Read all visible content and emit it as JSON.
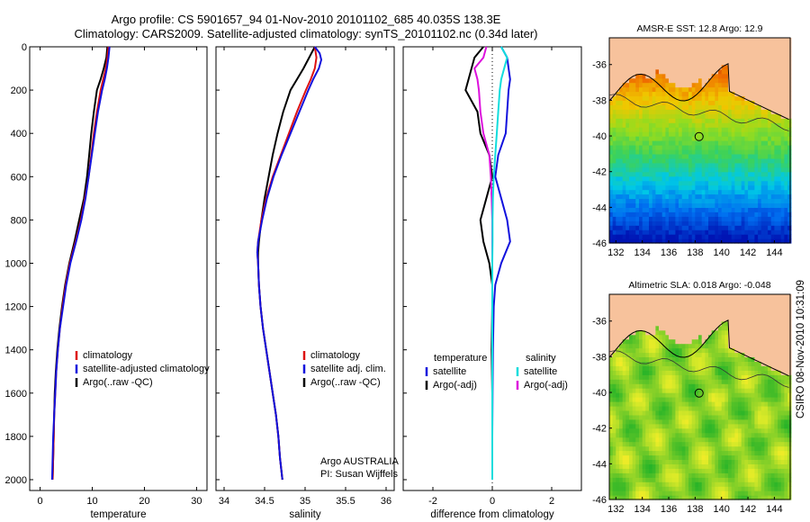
{
  "header": {
    "line1": "Argo profile: CS 5901657_94 01-Nov-2010 20101102_685 40.035S 138.3E",
    "line2": "Climatology: CARS2009. Satellite-adjusted climatology: synTS_20101102.nc (0.34d later)"
  },
  "side_label": "CSIRO 08-Nov-2010 10:31:09",
  "colors": {
    "clim": "#dd1111",
    "sat": "#1111dd",
    "argo": "#000000",
    "sat_sal": "#11dddd",
    "argo_sal": "#dd11dd"
  },
  "chart_data": [
    {
      "type": "line",
      "xlabel": "temperature",
      "xlim": [
        -2,
        32
      ],
      "ylim": [
        2050,
        0
      ],
      "xticks": [
        "0",
        "10",
        "20",
        "30"
      ],
      "yticks": [
        "0",
        "200",
        "400",
        "600",
        "800",
        "1000",
        "1200",
        "1400",
        "1600",
        "1800",
        "2000"
      ],
      "legend": {
        "placement": "lower-right",
        "entries": [
          "climatology",
          "satellite-adjusted climatology",
          "Argo(..raw -QC)"
        ]
      },
      "series": [
        {
          "name": "climatology",
          "depth": [
            0,
            50,
            100,
            150,
            200,
            300,
            400,
            500,
            600,
            700,
            800,
            900,
            1000,
            1100,
            1200,
            1300,
            1400,
            1500,
            1600,
            1700,
            1800,
            1900,
            2000
          ],
          "values": [
            13.1,
            12.9,
            12.6,
            12.1,
            11.6,
            10.9,
            10.3,
            9.8,
            9.3,
            8.6,
            7.8,
            6.8,
            5.7,
            4.9,
            4.3,
            3.8,
            3.4,
            3.1,
            2.9,
            2.7,
            2.6,
            2.5,
            2.4
          ]
        },
        {
          "name": "satellite-adjusted climatology",
          "depth": [
            0,
            50,
            100,
            150,
            200,
            300,
            400,
            500,
            600,
            700,
            800,
            900,
            1000,
            1100,
            1200,
            1300,
            1400,
            1500,
            1600,
            1700,
            1800,
            1900,
            2000
          ],
          "values": [
            13.3,
            13.1,
            12.8,
            12.4,
            11.9,
            11.1,
            10.5,
            9.9,
            9.3,
            8.7,
            7.9,
            6.9,
            5.8,
            5.0,
            4.4,
            3.8,
            3.4,
            3.1,
            2.9,
            2.7,
            2.5,
            2.4,
            2.3
          ]
        },
        {
          "name": "Argo(..raw -QC)",
          "depth": [
            0,
            50,
            100,
            150,
            200,
            300,
            400,
            500,
            600,
            700,
            800,
            900,
            1000,
            1100,
            1200,
            1300,
            1400,
            1500,
            1600,
            1700,
            1800,
            1900,
            2000
          ],
          "values": [
            12.9,
            12.7,
            12.2,
            11.6,
            10.9,
            10.3,
            9.8,
            9.4,
            9.0,
            8.4,
            7.5,
            6.6,
            5.6,
            4.8,
            4.2,
            3.7,
            3.3,
            3.0,
            2.8,
            2.7,
            2.6,
            2.5,
            2.4
          ]
        }
      ]
    },
    {
      "type": "line",
      "xlabel": "salinity",
      "xlim": [
        33.9,
        36.1
      ],
      "ylim": [
        2050,
        0
      ],
      "xticks": [
        "34",
        "34.5",
        "35",
        "35.5",
        "36"
      ],
      "legend": {
        "placement": "lower-right",
        "entries": [
          "climatology",
          "satellite adj. clim.",
          "Argo(..raw -QC)"
        ]
      },
      "annotations": [
        "Argo AUSTRALIA",
        "PI: Susan Wijffels"
      ],
      "series": [
        {
          "name": "climatology",
          "depth": [
            0,
            50,
            100,
            150,
            200,
            300,
            400,
            500,
            600,
            700,
            800,
            900,
            950,
            1000,
            1100,
            1200,
            1300,
            1400,
            1500,
            1600,
            1700,
            1800,
            1900,
            2000
          ],
          "values": [
            35.12,
            35.14,
            35.12,
            35.07,
            35.01,
            34.9,
            34.8,
            34.7,
            34.6,
            34.52,
            34.46,
            34.42,
            34.41,
            34.42,
            34.43,
            34.45,
            34.48,
            34.52,
            34.56,
            34.6,
            34.64,
            34.67,
            34.69,
            34.72
          ]
        },
        {
          "name": "satellite adj. clim.",
          "depth": [
            0,
            30,
            60,
            100,
            150,
            200,
            300,
            400,
            500,
            600,
            700,
            800,
            900,
            950,
            1000,
            1100,
            1200,
            1300,
            1400,
            1500,
            1600,
            1700,
            1800,
            1900,
            2000
          ],
          "values": [
            35.12,
            35.18,
            35.2,
            35.17,
            35.1,
            35.04,
            34.93,
            34.82,
            34.71,
            34.61,
            34.53,
            34.47,
            34.42,
            34.41,
            34.42,
            34.43,
            34.45,
            34.48,
            34.52,
            34.56,
            34.6,
            34.64,
            34.67,
            34.69,
            34.72
          ]
        },
        {
          "name": "Argo(..raw -QC)",
          "depth": [
            0,
            50,
            100,
            150,
            200,
            300,
            400,
            500,
            600,
            700,
            800,
            900,
            950,
            1000,
            1100,
            1200,
            1300,
            1400,
            1500,
            1600,
            1700,
            1800,
            1900,
            2000
          ],
          "values": [
            35.12,
            35.05,
            34.98,
            34.9,
            34.82,
            34.73,
            34.66,
            34.6,
            34.55,
            34.5,
            34.46,
            34.43,
            34.42,
            34.42,
            34.43,
            34.45,
            34.48,
            34.52,
            34.56,
            34.6,
            34.64,
            34.67,
            34.69,
            34.72
          ]
        }
      ]
    },
    {
      "type": "line",
      "xlabel": "difference from climatology",
      "xlim": [
        -3,
        3
      ],
      "ylim": [
        2050,
        0
      ],
      "xticks": [
        "-2",
        "0",
        "2"
      ],
      "legend": {
        "placement": "lower-center",
        "temperature_title": "temperature",
        "salinity_title": "salinity",
        "temperature_entries": [
          "satellite",
          "Argo(-adj)"
        ],
        "salinity_entries": [
          "satellite",
          "Argo(-adj)"
        ]
      },
      "series": [
        {
          "name": "satellite",
          "group": "temperature",
          "depth": [
            0,
            50,
            100,
            150,
            200,
            300,
            400,
            500,
            600,
            700,
            800,
            900,
            1000,
            1100,
            1200,
            1400,
            1600,
            1800,
            2000
          ],
          "values": [
            0.3,
            0.5,
            0.55,
            0.6,
            0.55,
            0.5,
            0.45,
            0.2,
            0.1,
            0.3,
            0.5,
            0.6,
            0.3,
            0.1,
            0.05,
            0.02,
            0.01,
            0.0,
            0.0
          ]
        },
        {
          "name": "Argo(-adj)",
          "group": "temperature",
          "depth": [
            0,
            50,
            100,
            150,
            200,
            300,
            400,
            500,
            600,
            700,
            800,
            900,
            1000,
            1100,
            1200,
            1400,
            1600,
            1800,
            2000
          ],
          "values": [
            -0.3,
            -0.6,
            -0.7,
            -0.8,
            -0.9,
            -0.5,
            -0.4,
            -0.1,
            0.0,
            -0.2,
            -0.4,
            -0.3,
            -0.1,
            0.0,
            0.0,
            -0.02,
            0.0,
            0.0,
            0.0
          ]
        },
        {
          "name": "satellite",
          "group": "salinity",
          "depth": [
            0,
            50,
            100,
            150,
            200,
            300,
            400,
            500,
            600,
            700,
            800,
            900,
            1000,
            1200,
            1400,
            1600,
            1800,
            2000
          ],
          "values": [
            0.3,
            0.5,
            0.4,
            0.3,
            0.25,
            0.2,
            0.15,
            0.1,
            0.05,
            0.02,
            0.01,
            0.01,
            0.0,
            0.0,
            0.0,
            0.0,
            0.0,
            0.0
          ]
        },
        {
          "name": "Argo(-adj)",
          "group": "salinity",
          "depth": [
            0,
            50,
            100,
            150,
            200,
            300,
            400,
            500,
            600,
            700,
            800,
            900,
            1000,
            1200,
            1400,
            1600,
            1800,
            2000
          ],
          "values": [
            -0.2,
            -0.3,
            -0.6,
            -0.5,
            -0.45,
            -0.4,
            -0.3,
            -0.1,
            -0.05,
            -0.02,
            0.0,
            0.0,
            0.0,
            0.0,
            0.0,
            0.0,
            0.0,
            0.0
          ]
        }
      ]
    },
    {
      "type": "heatmap",
      "title": "AMSR-E SST: 12.8 Argo: 12.9",
      "xlim": [
        131.5,
        145.2
      ],
      "ylim": [
        -46,
        -34.5
      ],
      "xticks": [
        "132",
        "134",
        "136",
        "138",
        "140",
        "142",
        "144"
      ],
      "yticks": [
        "-36",
        "-38",
        "-40",
        "-42",
        "-44",
        "-46"
      ],
      "marker": {
        "lon": 138.3,
        "lat": -40.035
      }
    },
    {
      "type": "heatmap",
      "title": "Altimetric SLA: 0.018 Argo: -0.048",
      "xlim": [
        131.5,
        145.2
      ],
      "ylim": [
        -46,
        -34.5
      ],
      "xticks": [
        "132",
        "134",
        "136",
        "138",
        "140",
        "142",
        "144"
      ],
      "yticks": [
        "-36",
        "-38",
        "-40",
        "-42",
        "-44",
        "-46"
      ],
      "marker": {
        "lon": 138.3,
        "lat": -40.035
      }
    }
  ]
}
